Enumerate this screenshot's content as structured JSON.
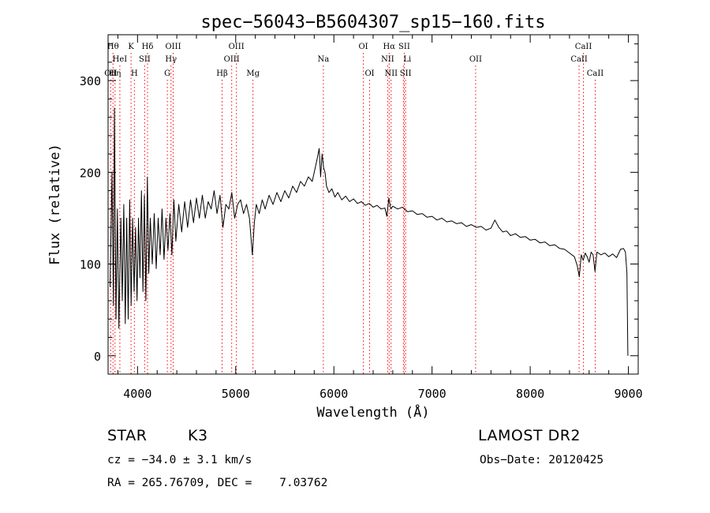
{
  "chart_data": {
    "type": "line",
    "title": "spec−56043−B5604307_sp15−160.fits",
    "xlabel": "Wavelength (Å)",
    "ylabel": "Flux (relative)",
    "xlim": [
      3700,
      9100
    ],
    "ylim": [
      -20,
      350
    ],
    "xticks": [
      4000,
      5000,
      6000,
      7000,
      8000,
      9000
    ],
    "yticks": [
      0,
      100,
      200,
      300
    ],
    "grid": false,
    "series": [
      {
        "values": [
          [
            3720,
            75
          ],
          [
            3740,
            200
          ],
          [
            3755,
            55
          ],
          [
            3765,
            270
          ],
          [
            3780,
            40
          ],
          [
            3795,
            160
          ],
          [
            3810,
            30
          ],
          [
            3830,
            150
          ],
          [
            3845,
            60
          ],
          [
            3860,
            165
          ],
          [
            3875,
            35
          ],
          [
            3890,
            150
          ],
          [
            3905,
            40
          ],
          [
            3920,
            170
          ],
          [
            3935,
            55
          ],
          [
            3950,
            150
          ],
          [
            3965,
            70
          ],
          [
            3980,
            140
          ],
          [
            3995,
            60
          ],
          [
            4010,
            150
          ],
          [
            4025,
            85
          ],
          [
            4040,
            180
          ],
          [
            4055,
            70
          ],
          [
            4070,
            175
          ],
          [
            4085,
            60
          ],
          [
            4100,
            195
          ],
          [
            4115,
            90
          ],
          [
            4130,
            150
          ],
          [
            4150,
            100
          ],
          [
            4170,
            155
          ],
          [
            4190,
            95
          ],
          [
            4210,
            150
          ],
          [
            4230,
            110
          ],
          [
            4250,
            160
          ],
          [
            4270,
            105
          ],
          [
            4290,
            150
          ],
          [
            4310,
            115
          ],
          [
            4330,
            155
          ],
          [
            4350,
            110
          ],
          [
            4370,
            170
          ],
          [
            4390,
            125
          ],
          [
            4420,
            165
          ],
          [
            4450,
            135
          ],
          [
            4480,
            168
          ],
          [
            4510,
            140
          ],
          [
            4540,
            170
          ],
          [
            4570,
            145
          ],
          [
            4600,
            172
          ],
          [
            4630,
            150
          ],
          [
            4660,
            175
          ],
          [
            4690,
            150
          ],
          [
            4720,
            168
          ],
          [
            4750,
            160
          ],
          [
            4780,
            180
          ],
          [
            4810,
            155
          ],
          [
            4840,
            175
          ],
          [
            4870,
            140
          ],
          [
            4900,
            165
          ],
          [
            4930,
            160
          ],
          [
            4960,
            178
          ],
          [
            4990,
            150
          ],
          [
            5020,
            165
          ],
          [
            5050,
            170
          ],
          [
            5080,
            155
          ],
          [
            5110,
            165
          ],
          [
            5140,
            150
          ],
          [
            5170,
            110
          ],
          [
            5190,
            145
          ],
          [
            5210,
            165
          ],
          [
            5240,
            155
          ],
          [
            5270,
            170
          ],
          [
            5300,
            160
          ],
          [
            5340,
            175
          ],
          [
            5380,
            165
          ],
          [
            5420,
            178
          ],
          [
            5460,
            168
          ],
          [
            5500,
            180
          ],
          [
            5540,
            172
          ],
          [
            5580,
            185
          ],
          [
            5620,
            178
          ],
          [
            5660,
            190
          ],
          [
            5700,
            185
          ],
          [
            5740,
            195
          ],
          [
            5780,
            190
          ],
          [
            5810,
            205
          ],
          [
            5830,
            215
          ],
          [
            5850,
            226
          ],
          [
            5865,
            195
          ],
          [
            5880,
            220
          ],
          [
            5895,
            205
          ],
          [
            5910,
            200
          ],
          [
            5925,
            185
          ],
          [
            5950,
            178
          ],
          [
            5980,
            182
          ],
          [
            6010,
            173
          ],
          [
            6040,
            178
          ],
          [
            6080,
            170
          ],
          [
            6120,
            174
          ],
          [
            6160,
            168
          ],
          [
            6200,
            171
          ],
          [
            6240,
            166
          ],
          [
            6280,
            168
          ],
          [
            6320,
            164
          ],
          [
            6360,
            166
          ],
          [
            6400,
            162
          ],
          [
            6440,
            164
          ],
          [
            6480,
            160
          ],
          [
            6520,
            161
          ],
          [
            6540,
            152
          ],
          [
            6560,
            172
          ],
          [
            6580,
            160
          ],
          [
            6600,
            163
          ],
          [
            6650,
            160
          ],
          [
            6700,
            162
          ],
          [
            6750,
            157
          ],
          [
            6800,
            158
          ],
          [
            6850,
            154
          ],
          [
            6900,
            155
          ],
          [
            6950,
            151
          ],
          [
            7000,
            152
          ],
          [
            7050,
            148
          ],
          [
            7100,
            150
          ],
          [
            7150,
            146
          ],
          [
            7200,
            147
          ],
          [
            7250,
            144
          ],
          [
            7300,
            145
          ],
          [
            7350,
            141
          ],
          [
            7400,
            143
          ],
          [
            7450,
            140
          ],
          [
            7500,
            141
          ],
          [
            7550,
            137
          ],
          [
            7600,
            139
          ],
          [
            7640,
            148
          ],
          [
            7680,
            140
          ],
          [
            7720,
            135
          ],
          [
            7760,
            136
          ],
          [
            7800,
            131
          ],
          [
            7850,
            133
          ],
          [
            7900,
            129
          ],
          [
            7950,
            130
          ],
          [
            8000,
            126
          ],
          [
            8050,
            127
          ],
          [
            8100,
            123
          ],
          [
            8150,
            124
          ],
          [
            8200,
            120
          ],
          [
            8250,
            121
          ],
          [
            8300,
            117
          ],
          [
            8350,
            116
          ],
          [
            8400,
            112
          ],
          [
            8450,
            108
          ],
          [
            8480,
            98
          ],
          [
            8500,
            86
          ],
          [
            8520,
            110
          ],
          [
            8540,
            104
          ],
          [
            8560,
            112
          ],
          [
            8580,
            108
          ],
          [
            8600,
            102
          ],
          [
            8620,
            113
          ],
          [
            8640,
            110
          ],
          [
            8660,
            92
          ],
          [
            8680,
            113
          ],
          [
            8720,
            110
          ],
          [
            8760,
            112
          ],
          [
            8800,
            108
          ],
          [
            8840,
            111
          ],
          [
            8880,
            107
          ],
          [
            8920,
            116
          ],
          [
            8950,
            117
          ],
          [
            8970,
            113
          ],
          [
            8985,
            90
          ],
          [
            8995,
            0
          ]
        ]
      }
    ],
    "lines": [
      {
        "wl": 3750,
        "label": "Hθ",
        "row": 0,
        "anchor": "middle"
      },
      {
        "wl": 3727,
        "label": "OII",
        "row": 2,
        "anchor": "middle"
      },
      {
        "wl": 3771,
        "label": "Hη",
        "row": 2,
        "anchor": "middle"
      },
      {
        "wl": 3820,
        "label": "HeI",
        "row": 1,
        "anchor": "middle"
      },
      {
        "wl": 3934,
        "label": "K",
        "row": 0,
        "anchor": "middle"
      },
      {
        "wl": 3968,
        "label": "H",
        "row": 2,
        "anchor": "middle"
      },
      {
        "wl": 4073,
        "label": "SII",
        "row": 1,
        "anchor": "middle"
      },
      {
        "wl": 4102,
        "label": "Hδ",
        "row": 0,
        "anchor": "middle"
      },
      {
        "wl": 4304,
        "label": "G",
        "row": 2,
        "anchor": "middle"
      },
      {
        "wl": 4341,
        "label": "Hγ",
        "row": 1,
        "anchor": "middle"
      },
      {
        "wl": 4363,
        "label": "OIII",
        "row": 0,
        "anchor": "middle"
      },
      {
        "wl": 4861,
        "label": "Hβ",
        "row": 2,
        "anchor": "middle"
      },
      {
        "wl": 4959,
        "label": "OIII",
        "row": 1,
        "anchor": "middle"
      },
      {
        "wl": 5007,
        "label": "OIII",
        "row": 0,
        "anchor": "middle"
      },
      {
        "wl": 5176,
        "label": "Mg",
        "row": 2,
        "anchor": "middle"
      },
      {
        "wl": 5893,
        "label": "Na",
        "row": 1,
        "anchor": "middle"
      },
      {
        "wl": 6300,
        "label": "OI",
        "row": 0,
        "anchor": "middle"
      },
      {
        "wl": 6364,
        "label": "OI",
        "row": 2,
        "anchor": "middle"
      },
      {
        "wl": 6548,
        "label": "NII",
        "row": 1,
        "anchor": "middle"
      },
      {
        "wl": 6563,
        "label": "Hα",
        "row": 0,
        "anchor": "middle"
      },
      {
        "wl": 6583,
        "label": "NII",
        "row": 2,
        "anchor": "middle"
      },
      {
        "wl": 6708,
        "label": "Li",
        "row": 1,
        "anchor": "start"
      },
      {
        "wl": 6717,
        "label": "SII",
        "row": 0,
        "anchor": "middle"
      },
      {
        "wl": 6731,
        "label": "SII",
        "row": 2,
        "anchor": "middle"
      },
      {
        "wl": 7444,
        "label": "OII",
        "row": 1,
        "anchor": "middle"
      },
      {
        "wl": 8498,
        "label": "CaII",
        "row": 1,
        "anchor": "middle"
      },
      {
        "wl": 8542,
        "label": "CaII",
        "row": 0,
        "anchor": "middle"
      },
      {
        "wl": 8662,
        "label": "CaII",
        "row": 2,
        "anchor": "middle"
      }
    ],
    "line_color": "#ff0000"
  },
  "info": {
    "object_class": "STAR",
    "subclass": "K3",
    "survey": "LAMOST DR2",
    "cz": "cz = −34.0 ± 3.1 km/s",
    "obs_date": "Obs−Date: 20120425",
    "radec": "RA = 265.76709, DEC =    7.03762"
  }
}
